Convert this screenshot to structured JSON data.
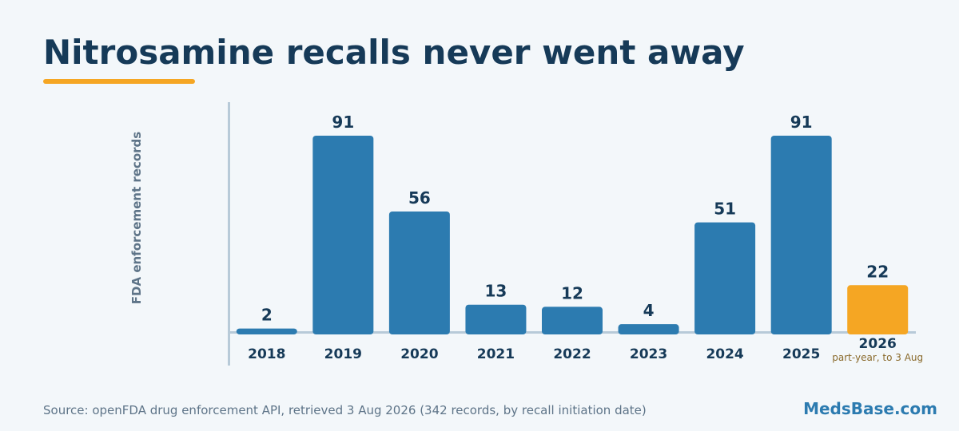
{
  "header": {
    "title": "Nitrosamine recalls never went away"
  },
  "chart_data": {
    "type": "bar",
    "title": "Nitrosamine recalls never went away",
    "xlabel": "",
    "ylabel": "FDA enforcement records",
    "categories": [
      "2018",
      "2019",
      "2020",
      "2021",
      "2022",
      "2023",
      "2024",
      "2025",
      "2026"
    ],
    "values": [
      2,
      91,
      56,
      13,
      12,
      4,
      51,
      91,
      22
    ],
    "category_notes": [
      "",
      "",
      "",
      "",
      "",
      "",
      "",
      "",
      "part-year, to 3 Aug"
    ],
    "highlight_category": "2026",
    "ylim": [
      0,
      91
    ],
    "grid": false,
    "legend": "none",
    "colors": {
      "bar": "#2c7bb0",
      "highlight": "#f5a623",
      "value_label": "#163a58",
      "tick_label": "#163a58",
      "note": "#8a6a2c",
      "axis": "#b7cad8"
    }
  },
  "footer": {
    "source": "Source: openFDA drug enforcement API, retrieved 3 Aug 2026 (342 records, by recall initiation date)",
    "brand": "MedsBase.com"
  }
}
